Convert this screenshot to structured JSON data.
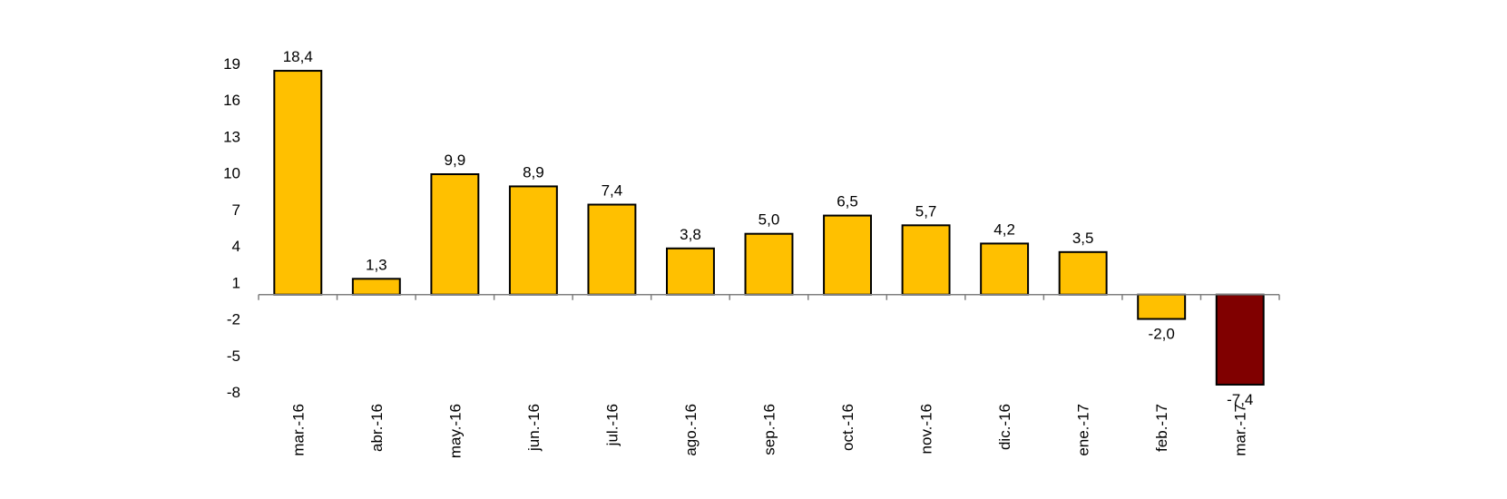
{
  "chart_data": {
    "type": "bar",
    "title": "",
    "xlabel": "",
    "ylabel": "",
    "categories": [
      "mar.-16",
      "abr.-16",
      "may.-16",
      "jun.-16",
      "jul.-16",
      "ago.-16",
      "sep.-16",
      "oct.-16",
      "nov.-16",
      "dic.-16",
      "ene.-17",
      "feb.-17",
      "mar.-17"
    ],
    "values": [
      18.4,
      1.3,
      9.9,
      8.9,
      7.4,
      3.8,
      5.0,
      6.5,
      5.7,
      4.2,
      3.5,
      -2.0,
      -7.4
    ],
    "data_labels": [
      "18,4",
      "1,3",
      "9,9",
      "8,9",
      "7,4",
      "3,8",
      "5,0",
      "6,5",
      "5,7",
      "4,2",
      "3,5",
      "-2,0",
      "-7,4"
    ],
    "yticks": [
      -8,
      -5,
      -2,
      1,
      4,
      7,
      10,
      13,
      16,
      19
    ],
    "ylim": [
      -8,
      19
    ],
    "grid": false,
    "legend": "none",
    "colors": {
      "bar": "#FFC000",
      "highlight": "#800000",
      "outline": "#000000",
      "axis": "#808080"
    },
    "highlight_index": 12
  }
}
